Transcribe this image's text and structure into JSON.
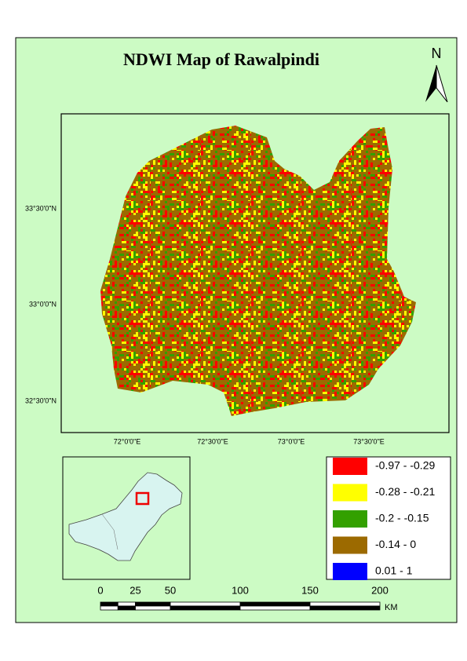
{
  "title": "NDWI Map of Rawalpindi",
  "north_arrow": "N",
  "map": {
    "lat_labels": [
      "33°30'0\"N",
      "33°0'0\"N",
      "32°30'0\"N"
    ],
    "lon_labels": [
      "72°0'0\"E",
      "72°30'0\"E",
      "73°0'0\"E",
      "73°30'0\"E"
    ]
  },
  "legend": [
    {
      "label": "-0.97 - -0.29",
      "color": "#ff0000"
    },
    {
      "label": "-0.28 - -0.21",
      "color": "#ffff00"
    },
    {
      "label": "-0.2 - -0.15",
      "color": "#33a000"
    },
    {
      "label": "-0.14 - 0",
      "color": "#9c6a00"
    },
    {
      "label": "0.01 - 1",
      "color": "#0000ff"
    }
  ],
  "scale_bar": {
    "ticks": [
      0,
      25,
      50,
      100,
      150,
      200
    ],
    "unit": "KM"
  }
}
